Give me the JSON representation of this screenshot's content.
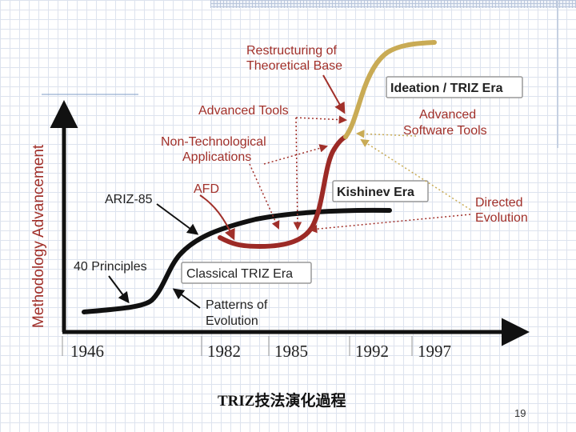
{
  "diagram": {
    "y_axis_label": "Methodology Advancement",
    "years": [
      "1946",
      "1982",
      "1985",
      "1992",
      "1997"
    ],
    "eras": {
      "classical": "Classical TRIZ Era",
      "kishinev": "Kishinev Era",
      "ideation": "Ideation / TRIZ Era"
    },
    "labels": {
      "restructuring_line1": "Restructuring of",
      "restructuring_line2": "Theoretical Base",
      "advanced_tools": "Advanced Tools",
      "non_tech_line1": "Non-Technological",
      "non_tech_line2": "Applications",
      "afd": "AFD",
      "ariz": "ARIZ-85",
      "forty_principles": "40 Principles",
      "patterns_line1": "Patterns of",
      "patterns_line2": "Evolution",
      "adv_software_line1": "Advanced",
      "adv_software_line2": "Software Tools",
      "directed_line1": "Directed",
      "directed_line2": "Evolution"
    },
    "colors": {
      "black_curve": "#111111",
      "red_curve": "#9c2a26",
      "gold_curve": "#c9ab55",
      "label_red": "#a1302a"
    }
  },
  "caption": "TRIZ技法演化過程",
  "page_number": "19"
}
